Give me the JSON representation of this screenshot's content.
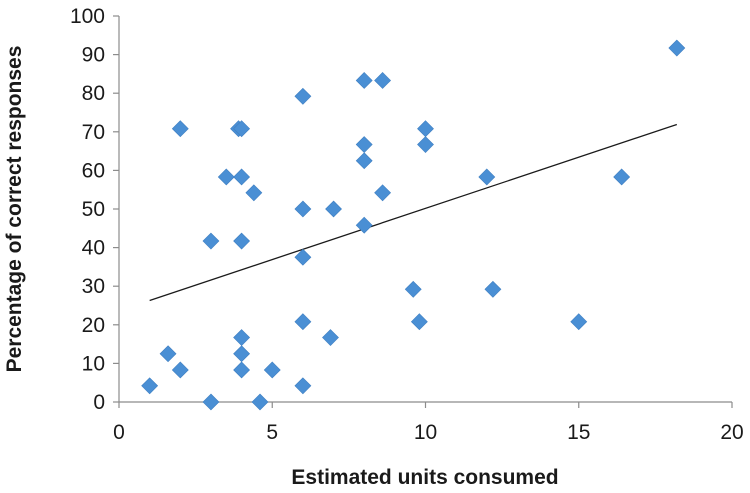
{
  "chart_data": {
    "type": "scatter",
    "xlabel": "Estimated units consumed",
    "ylabel": "Percentage of correct responses",
    "xlim": [
      0,
      20
    ],
    "ylim": [
      0,
      100
    ],
    "xticks": [
      0,
      5,
      10,
      15,
      20
    ],
    "yticks": [
      0,
      10,
      20,
      30,
      40,
      50,
      60,
      70,
      80,
      90,
      100
    ],
    "grid": false,
    "legend": "none",
    "colors": {
      "marker": "#4a8fd4",
      "trendline": "#1a1a1a",
      "axis": "#8c8c8c"
    },
    "series": [
      {
        "marker": "diamond",
        "points": [
          [
            1.0,
            4.2
          ],
          [
            1.6,
            12.5
          ],
          [
            2.0,
            8.3
          ],
          [
            2.0,
            70.8
          ],
          [
            3.0,
            0.0
          ],
          [
            3.0,
            41.7
          ],
          [
            3.5,
            58.3
          ],
          [
            3.9,
            70.8
          ],
          [
            4.0,
            70.8
          ],
          [
            4.0,
            58.3
          ],
          [
            4.0,
            41.7
          ],
          [
            4.0,
            16.7
          ],
          [
            4.0,
            12.5
          ],
          [
            4.0,
            8.3
          ],
          [
            4.4,
            54.2
          ],
          [
            4.6,
            0.0
          ],
          [
            5.0,
            8.3
          ],
          [
            6.0,
            79.2
          ],
          [
            6.0,
            50.0
          ],
          [
            6.0,
            37.5
          ],
          [
            6.0,
            20.8
          ],
          [
            6.0,
            4.2
          ],
          [
            6.9,
            16.7
          ],
          [
            7.0,
            50.0
          ],
          [
            8.0,
            83.3
          ],
          [
            8.0,
            66.7
          ],
          [
            8.0,
            62.5
          ],
          [
            8.0,
            45.8
          ],
          [
            8.6,
            83.3
          ],
          [
            8.6,
            54.2
          ],
          [
            9.6,
            29.2
          ],
          [
            9.8,
            20.8
          ],
          [
            10.0,
            70.8
          ],
          [
            10.0,
            66.7
          ],
          [
            12.0,
            58.3
          ],
          [
            12.2,
            29.2
          ],
          [
            15.0,
            20.8
          ],
          [
            16.4,
            58.3
          ],
          [
            18.2,
            91.7
          ]
        ]
      }
    ],
    "trendline": {
      "type": "linear",
      "x": [
        1.0,
        18.2
      ],
      "y": [
        26.3,
        71.9
      ]
    }
  }
}
